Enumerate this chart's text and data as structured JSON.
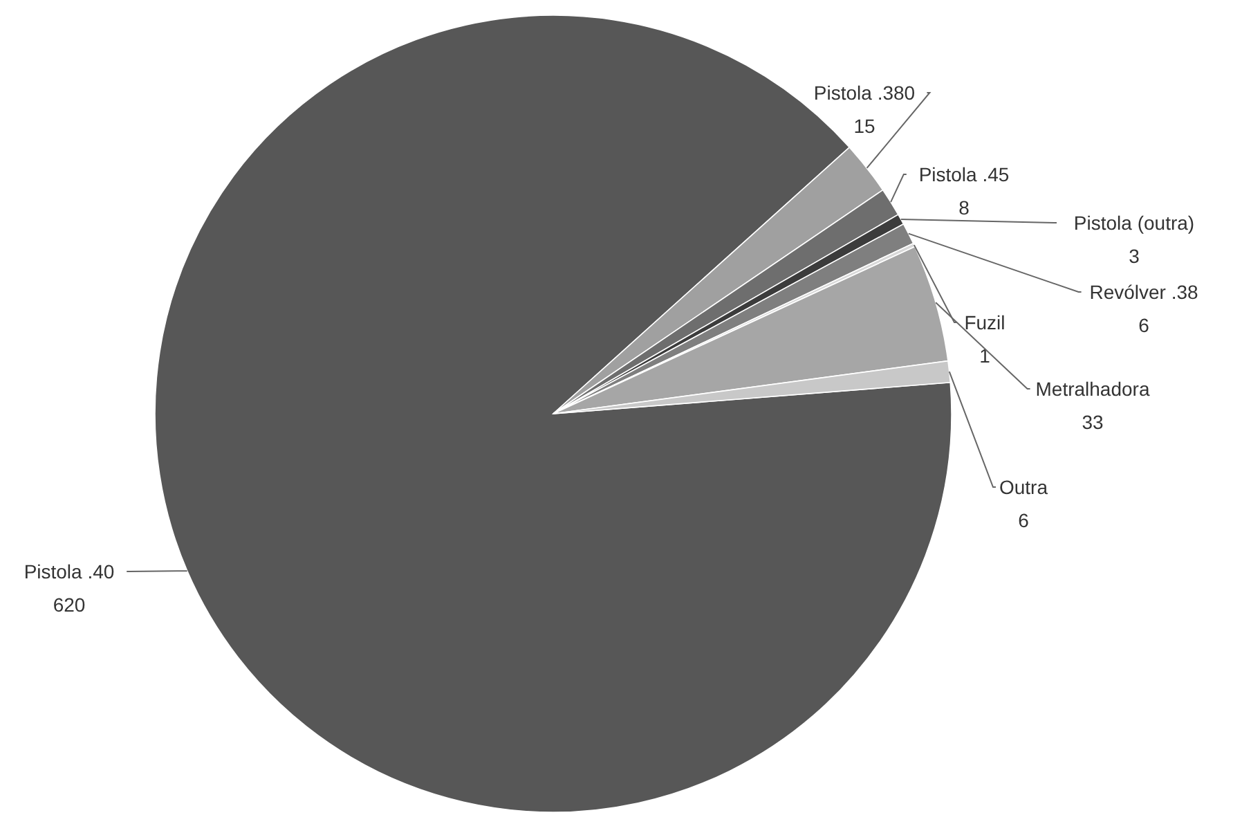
{
  "chart_data": {
    "type": "pie",
    "categories": [
      "Pistola .40",
      "Pistola .380",
      "Pistola .45",
      "Pistola (outra)",
      "Revólver .38",
      "Fuzil",
      "Metralhadora",
      "Outra"
    ],
    "values": [
      620,
      15,
      8,
      3,
      6,
      1,
      33,
      6
    ],
    "colors": [
      "#575757",
      "#a0a0a0",
      "#6e6e6e",
      "#3c3c3c",
      "#7f7f7f",
      "#d8d8d8",
      "#a6a6a6",
      "#c8c8c8"
    ],
    "data_labels": true
  }
}
